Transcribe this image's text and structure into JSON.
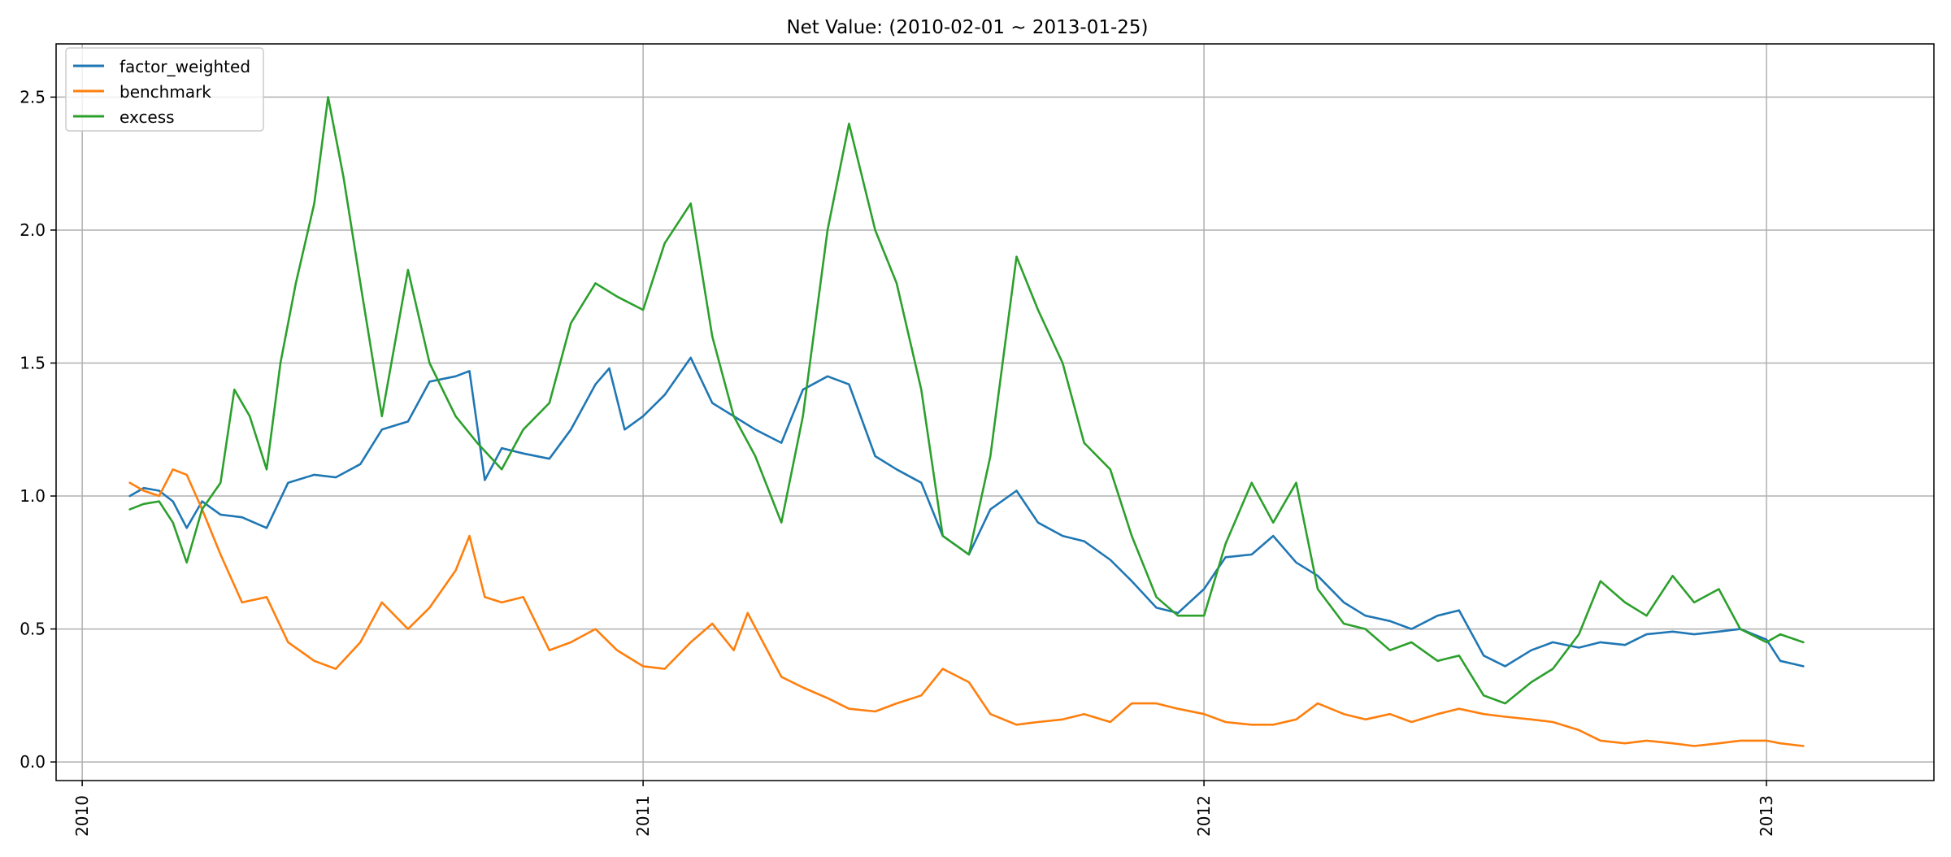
{
  "chart_data": {
    "type": "line",
    "title": "Net Value: (2010-02-01 ~ 2013-01-25)",
    "xlabel": "",
    "ylabel": "",
    "x_ticks": [
      "2010",
      "2011",
      "2012",
      "2013"
    ],
    "y_ticks": [
      "0.0",
      "0.5",
      "1.0",
      "1.5",
      "2.0",
      "2.5"
    ],
    "xlim": [
      "2009-12-15",
      "2013-04-20"
    ],
    "ylim": [
      -0.07,
      2.7
    ],
    "grid": true,
    "legend_position": "upper-left",
    "series": [
      {
        "name": "factor_weighted",
        "color": "#1f77b4",
        "points": [
          [
            "2010-02-01",
            1.0
          ],
          [
            "2010-02-10",
            1.03
          ],
          [
            "2010-02-20",
            1.02
          ],
          [
            "2010-03-01",
            0.98
          ],
          [
            "2010-03-10",
            0.88
          ],
          [
            "2010-03-20",
            0.98
          ],
          [
            "2010-04-01",
            0.93
          ],
          [
            "2010-04-15",
            0.92
          ],
          [
            "2010-05-01",
            0.88
          ],
          [
            "2010-05-15",
            1.05
          ],
          [
            "2010-06-01",
            1.08
          ],
          [
            "2010-06-15",
            1.07
          ],
          [
            "2010-07-01",
            1.12
          ],
          [
            "2010-07-15",
            1.25
          ],
          [
            "2010-08-01",
            1.28
          ],
          [
            "2010-08-15",
            1.43
          ],
          [
            "2010-09-01",
            1.45
          ],
          [
            "2010-09-10",
            1.47
          ],
          [
            "2010-09-20",
            1.06
          ],
          [
            "2010-10-01",
            1.18
          ],
          [
            "2010-10-15",
            1.16
          ],
          [
            "2010-11-01",
            1.14
          ],
          [
            "2010-11-15",
            1.25
          ],
          [
            "2010-12-01",
            1.42
          ],
          [
            "2010-12-10",
            1.48
          ],
          [
            "2010-12-20",
            1.25
          ],
          [
            "2011-01-01",
            1.3
          ],
          [
            "2011-01-15",
            1.38
          ],
          [
            "2011-02-01",
            1.52
          ],
          [
            "2011-02-15",
            1.35
          ],
          [
            "2011-03-01",
            1.3
          ],
          [
            "2011-03-15",
            1.25
          ],
          [
            "2011-04-01",
            1.2
          ],
          [
            "2011-04-15",
            1.4
          ],
          [
            "2011-05-01",
            1.45
          ],
          [
            "2011-05-15",
            1.42
          ],
          [
            "2011-06-01",
            1.15
          ],
          [
            "2011-06-15",
            1.1
          ],
          [
            "2011-07-01",
            1.05
          ],
          [
            "2011-07-15",
            0.85
          ],
          [
            "2011-08-01",
            0.78
          ],
          [
            "2011-08-15",
            0.95
          ],
          [
            "2011-09-01",
            1.02
          ],
          [
            "2011-09-15",
            0.9
          ],
          [
            "2011-10-01",
            0.85
          ],
          [
            "2011-10-15",
            0.83
          ],
          [
            "2011-11-01",
            0.76
          ],
          [
            "2011-11-15",
            0.68
          ],
          [
            "2011-12-01",
            0.58
          ],
          [
            "2011-12-15",
            0.56
          ],
          [
            "2012-01-01",
            0.65
          ],
          [
            "2012-01-15",
            0.77
          ],
          [
            "2012-02-01",
            0.78
          ],
          [
            "2012-02-15",
            0.85
          ],
          [
            "2012-03-01",
            0.75
          ],
          [
            "2012-03-15",
            0.7
          ],
          [
            "2012-04-01",
            0.6
          ],
          [
            "2012-04-15",
            0.55
          ],
          [
            "2012-05-01",
            0.53
          ],
          [
            "2012-05-15",
            0.5
          ],
          [
            "2012-06-01",
            0.55
          ],
          [
            "2012-06-15",
            0.57
          ],
          [
            "2012-07-01",
            0.4
          ],
          [
            "2012-07-15",
            0.36
          ],
          [
            "2012-08-01",
            0.42
          ],
          [
            "2012-08-15",
            0.45
          ],
          [
            "2012-09-01",
            0.43
          ],
          [
            "2012-09-15",
            0.45
          ],
          [
            "2012-10-01",
            0.44
          ],
          [
            "2012-10-15",
            0.48
          ],
          [
            "2012-11-01",
            0.49
          ],
          [
            "2012-11-15",
            0.48
          ],
          [
            "2012-12-01",
            0.49
          ],
          [
            "2012-12-15",
            0.5
          ],
          [
            "2013-01-01",
            0.46
          ],
          [
            "2013-01-10",
            0.38
          ],
          [
            "2013-01-25",
            0.36
          ]
        ]
      },
      {
        "name": "benchmark",
        "color": "#ff7f0e",
        "points": [
          [
            "2010-02-01",
            1.05
          ],
          [
            "2010-02-10",
            1.02
          ],
          [
            "2010-02-20",
            1.0
          ],
          [
            "2010-03-01",
            1.1
          ],
          [
            "2010-03-10",
            1.08
          ],
          [
            "2010-03-20",
            0.95
          ],
          [
            "2010-04-01",
            0.78
          ],
          [
            "2010-04-15",
            0.6
          ],
          [
            "2010-05-01",
            0.62
          ],
          [
            "2010-05-15",
            0.45
          ],
          [
            "2010-06-01",
            0.38
          ],
          [
            "2010-06-15",
            0.35
          ],
          [
            "2010-07-01",
            0.45
          ],
          [
            "2010-07-15",
            0.6
          ],
          [
            "2010-08-01",
            0.5
          ],
          [
            "2010-08-15",
            0.58
          ],
          [
            "2010-09-01",
            0.72
          ],
          [
            "2010-09-10",
            0.85
          ],
          [
            "2010-09-20",
            0.62
          ],
          [
            "2010-10-01",
            0.6
          ],
          [
            "2010-10-15",
            0.62
          ],
          [
            "2010-11-01",
            0.42
          ],
          [
            "2010-11-15",
            0.45
          ],
          [
            "2010-12-01",
            0.5
          ],
          [
            "2010-12-15",
            0.42
          ],
          [
            "2011-01-01",
            0.36
          ],
          [
            "2011-01-15",
            0.35
          ],
          [
            "2011-02-01",
            0.45
          ],
          [
            "2011-02-15",
            0.52
          ],
          [
            "2011-03-01",
            0.42
          ],
          [
            "2011-03-10",
            0.56
          ],
          [
            "2011-03-20",
            0.45
          ],
          [
            "2011-04-01",
            0.32
          ],
          [
            "2011-04-15",
            0.28
          ],
          [
            "2011-05-01",
            0.24
          ],
          [
            "2011-05-15",
            0.2
          ],
          [
            "2011-06-01",
            0.19
          ],
          [
            "2011-06-15",
            0.22
          ],
          [
            "2011-07-01",
            0.25
          ],
          [
            "2011-07-15",
            0.35
          ],
          [
            "2011-08-01",
            0.3
          ],
          [
            "2011-08-15",
            0.18
          ],
          [
            "2011-09-01",
            0.14
          ],
          [
            "2011-09-15",
            0.15
          ],
          [
            "2011-10-01",
            0.16
          ],
          [
            "2011-10-15",
            0.18
          ],
          [
            "2011-11-01",
            0.15
          ],
          [
            "2011-11-15",
            0.22
          ],
          [
            "2011-12-01",
            0.22
          ],
          [
            "2011-12-15",
            0.2
          ],
          [
            "2012-01-01",
            0.18
          ],
          [
            "2012-01-15",
            0.15
          ],
          [
            "2012-02-01",
            0.14
          ],
          [
            "2012-02-15",
            0.14
          ],
          [
            "2012-03-01",
            0.16
          ],
          [
            "2012-03-15",
            0.22
          ],
          [
            "2012-04-01",
            0.18
          ],
          [
            "2012-04-15",
            0.16
          ],
          [
            "2012-05-01",
            0.18
          ],
          [
            "2012-05-15",
            0.15
          ],
          [
            "2012-06-01",
            0.18
          ],
          [
            "2012-06-15",
            0.2
          ],
          [
            "2012-07-01",
            0.18
          ],
          [
            "2012-07-15",
            0.17
          ],
          [
            "2012-08-01",
            0.16
          ],
          [
            "2012-08-15",
            0.15
          ],
          [
            "2012-09-01",
            0.12
          ],
          [
            "2012-09-15",
            0.08
          ],
          [
            "2012-10-01",
            0.07
          ],
          [
            "2012-10-15",
            0.08
          ],
          [
            "2012-11-01",
            0.07
          ],
          [
            "2012-11-15",
            0.06
          ],
          [
            "2012-12-01",
            0.07
          ],
          [
            "2012-12-15",
            0.08
          ],
          [
            "2013-01-01",
            0.08
          ],
          [
            "2013-01-10",
            0.07
          ],
          [
            "2013-01-25",
            0.06
          ]
        ]
      },
      {
        "name": "excess",
        "color": "#2ca02c",
        "points": [
          [
            "2010-02-01",
            0.95
          ],
          [
            "2010-02-10",
            0.97
          ],
          [
            "2010-02-20",
            0.98
          ],
          [
            "2010-03-01",
            0.9
          ],
          [
            "2010-03-10",
            0.75
          ],
          [
            "2010-03-20",
            0.95
          ],
          [
            "2010-04-01",
            1.05
          ],
          [
            "2010-04-10",
            1.4
          ],
          [
            "2010-04-20",
            1.3
          ],
          [
            "2010-05-01",
            1.1
          ],
          [
            "2010-05-10",
            1.5
          ],
          [
            "2010-05-20",
            1.8
          ],
          [
            "2010-06-01",
            2.1
          ],
          [
            "2010-06-10",
            2.5
          ],
          [
            "2010-06-20",
            2.2
          ],
          [
            "2010-07-01",
            1.8
          ],
          [
            "2010-07-15",
            1.3
          ],
          [
            "2010-08-01",
            1.85
          ],
          [
            "2010-08-15",
            1.5
          ],
          [
            "2010-09-01",
            1.3
          ],
          [
            "2010-09-15",
            1.2
          ],
          [
            "2010-10-01",
            1.1
          ],
          [
            "2010-10-15",
            1.25
          ],
          [
            "2010-11-01",
            1.35
          ],
          [
            "2010-11-15",
            1.65
          ],
          [
            "2010-12-01",
            1.8
          ],
          [
            "2010-12-15",
            1.75
          ],
          [
            "2011-01-01",
            1.7
          ],
          [
            "2011-01-15",
            1.95
          ],
          [
            "2011-02-01",
            2.1
          ],
          [
            "2011-02-15",
            1.6
          ],
          [
            "2011-03-01",
            1.3
          ],
          [
            "2011-03-15",
            1.15
          ],
          [
            "2011-04-01",
            0.9
          ],
          [
            "2011-04-15",
            1.3
          ],
          [
            "2011-05-01",
            2.0
          ],
          [
            "2011-05-15",
            2.4
          ],
          [
            "2011-06-01",
            2.0
          ],
          [
            "2011-06-15",
            1.8
          ],
          [
            "2011-07-01",
            1.4
          ],
          [
            "2011-07-15",
            0.85
          ],
          [
            "2011-08-01",
            0.78
          ],
          [
            "2011-08-15",
            1.15
          ],
          [
            "2011-09-01",
            1.9
          ],
          [
            "2011-09-15",
            1.7
          ],
          [
            "2011-10-01",
            1.5
          ],
          [
            "2011-10-15",
            1.2
          ],
          [
            "2011-11-01",
            1.1
          ],
          [
            "2011-11-15",
            0.85
          ],
          [
            "2011-12-01",
            0.62
          ],
          [
            "2011-12-15",
            0.55
          ],
          [
            "2012-01-01",
            0.55
          ],
          [
            "2012-01-15",
            0.82
          ],
          [
            "2012-02-01",
            1.05
          ],
          [
            "2012-02-15",
            0.9
          ],
          [
            "2012-03-01",
            1.05
          ],
          [
            "2012-03-15",
            0.65
          ],
          [
            "2012-04-01",
            0.52
          ],
          [
            "2012-04-15",
            0.5
          ],
          [
            "2012-05-01",
            0.42
          ],
          [
            "2012-05-15",
            0.45
          ],
          [
            "2012-06-01",
            0.38
          ],
          [
            "2012-06-15",
            0.4
          ],
          [
            "2012-07-01",
            0.25
          ],
          [
            "2012-07-15",
            0.22
          ],
          [
            "2012-08-01",
            0.3
          ],
          [
            "2012-08-15",
            0.35
          ],
          [
            "2012-09-01",
            0.48
          ],
          [
            "2012-09-15",
            0.68
          ],
          [
            "2012-10-01",
            0.6
          ],
          [
            "2012-10-15",
            0.55
          ],
          [
            "2012-11-01",
            0.7
          ],
          [
            "2012-11-15",
            0.6
          ],
          [
            "2012-12-01",
            0.65
          ],
          [
            "2012-12-15",
            0.5
          ],
          [
            "2013-01-01",
            0.45
          ],
          [
            "2013-01-10",
            0.48
          ],
          [
            "2013-01-25",
            0.45
          ]
        ]
      }
    ]
  }
}
